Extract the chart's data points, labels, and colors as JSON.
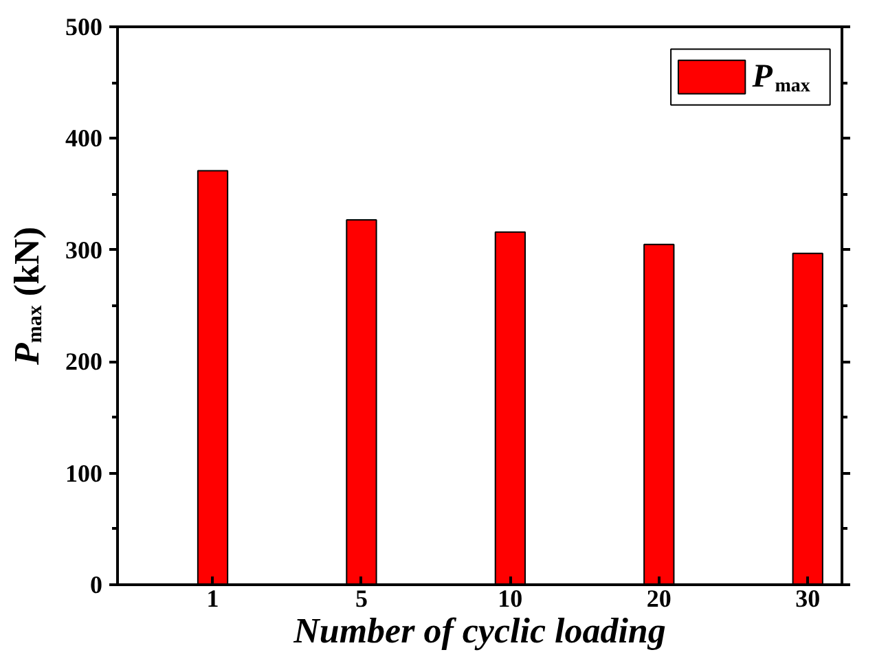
{
  "chart_data": {
    "type": "bar",
    "categories": [
      "1",
      "5",
      "10",
      "20",
      "30"
    ],
    "series": [
      {
        "name": "P$_{max}$",
        "color": "#ff0000",
        "values": [
          371,
          327,
          316,
          305,
          297
        ]
      }
    ],
    "xlabel": "Number of cyclic loading",
    "ylabel": "P$_{max}$ (kN)",
    "ylim": [
      0,
      500
    ],
    "yticks": [
      0,
      100,
      200,
      300,
      400,
      500
    ],
    "legend": "top right",
    "grid": false
  }
}
